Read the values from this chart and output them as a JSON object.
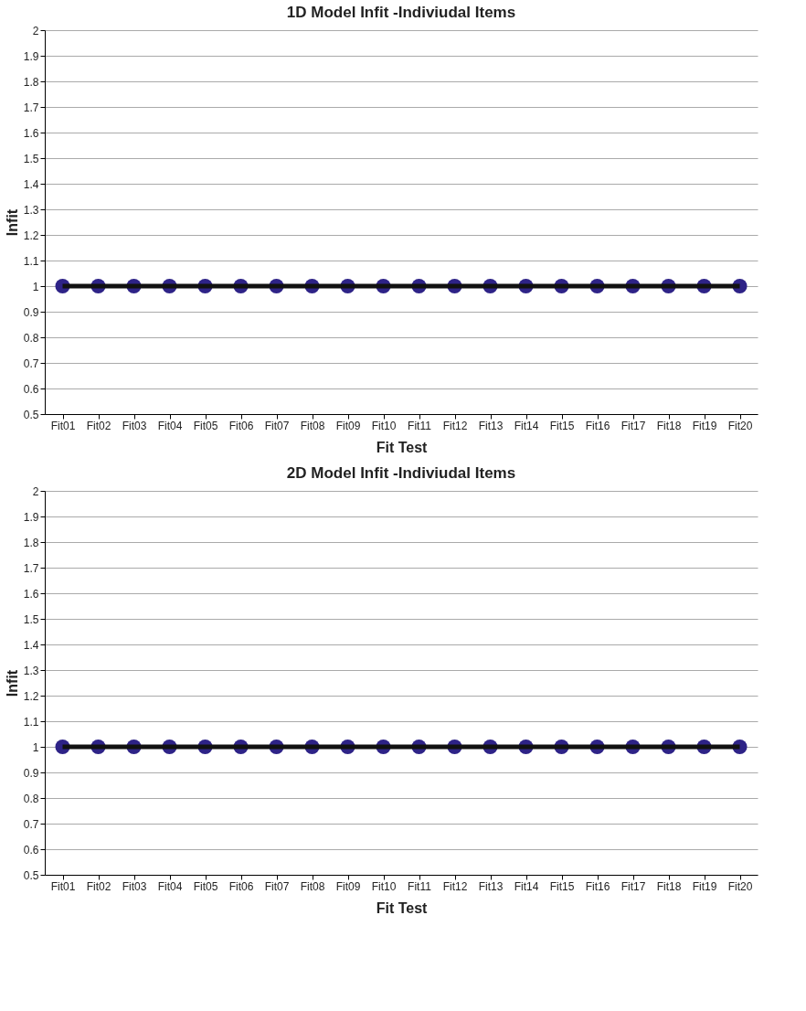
{
  "chart_data": [
    {
      "type": "scatter",
      "title": "1D Model Infit -Indiviudal Items",
      "xlabel": "Fit Test",
      "ylabel": "Infit",
      "categories": [
        "Fit01",
        "Fit02",
        "Fit03",
        "Fit04",
        "Fit05",
        "Fit06",
        "Fit07",
        "Fit08",
        "Fit09",
        "Fit10",
        "Fit11",
        "Fit12",
        "Fit13",
        "Fit14",
        "Fit15",
        "Fit16",
        "Fit17",
        "Fit18",
        "Fit19",
        "Fit20"
      ],
      "series": [
        {
          "color": "#2e2387",
          "marker": "circle",
          "values": [
            1,
            1,
            1,
            1,
            1,
            1,
            1,
            1,
            1,
            1,
            1,
            1,
            1,
            1,
            1,
            1,
            1,
            1,
            1,
            1
          ]
        },
        {
          "type": "line",
          "color": "#111111",
          "marker": "none",
          "values": [
            1,
            1,
            1,
            1,
            1,
            1,
            1,
            1,
            1,
            1,
            1,
            1,
            1,
            1,
            1,
            1,
            1,
            1,
            1,
            1
          ]
        }
      ],
      "ylim": [
        0.5,
        2
      ],
      "yticks": [
        0.5,
        0.6,
        0.7,
        0.8,
        0.9,
        1,
        1.1,
        1.2,
        1.3,
        1.4,
        1.5,
        1.6,
        1.7,
        1.8,
        1.9,
        2
      ],
      "grid": "y"
    },
    {
      "type": "scatter",
      "title": "2D Model Infit -Indiviudal Items",
      "xlabel": "Fit Test",
      "ylabel": "Infit",
      "categories": [
        "Fit01",
        "Fit02",
        "Fit03",
        "Fit04",
        "Fit05",
        "Fit06",
        "Fit07",
        "Fit08",
        "Fit09",
        "Fit10",
        "Fit11",
        "Fit12",
        "Fit13",
        "Fit14",
        "Fit15",
        "Fit16",
        "Fit17",
        "Fit18",
        "Fit19",
        "Fit20"
      ],
      "series": [
        {
          "color": "#2e2387",
          "marker": "circle",
          "values": [
            1,
            1,
            1,
            1,
            1,
            1,
            1,
            1,
            1,
            1,
            1,
            1,
            1,
            1,
            1,
            1,
            1,
            1,
            1,
            1
          ]
        },
        {
          "type": "line",
          "color": "#111111",
          "marker": "none",
          "values": [
            1,
            1,
            1,
            1,
            1,
            1,
            1,
            1,
            1,
            1,
            1,
            1,
            1,
            1,
            1,
            1,
            1,
            1,
            1,
            1
          ]
        }
      ],
      "ylim": [
        0.5,
        2
      ],
      "yticks": [
        0.5,
        0.6,
        0.7,
        0.8,
        0.9,
        1,
        1.1,
        1.2,
        1.3,
        1.4,
        1.5,
        1.6,
        1.7,
        1.8,
        1.9,
        2
      ],
      "grid": "y"
    }
  ]
}
